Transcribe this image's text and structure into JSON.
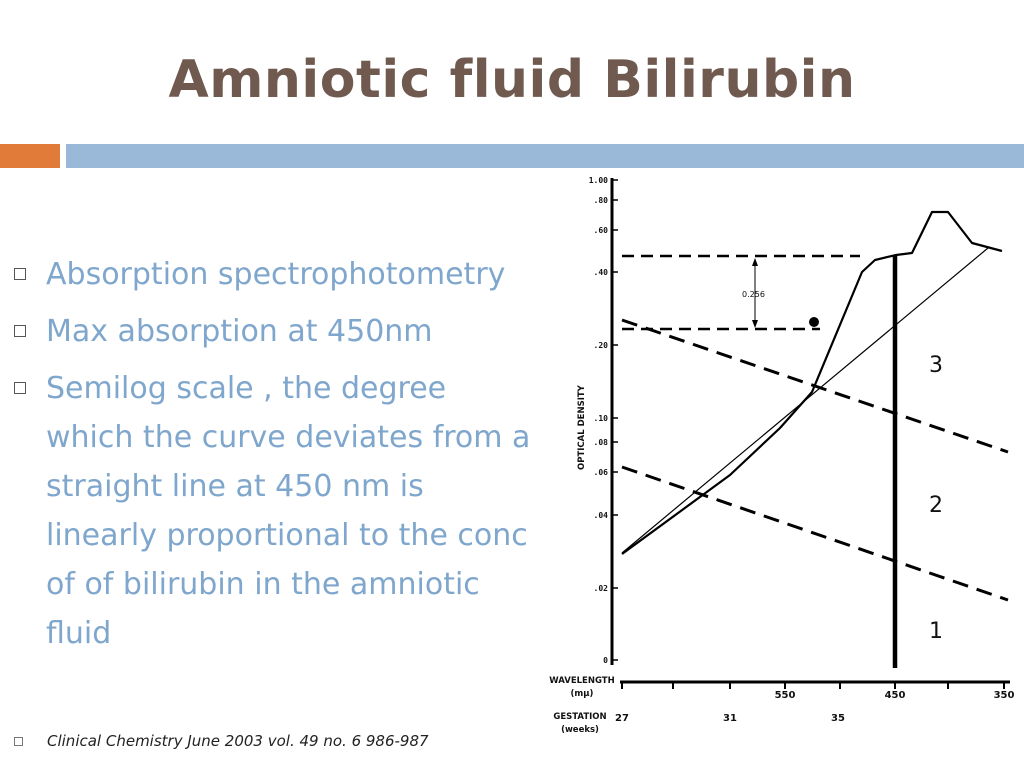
{
  "slide": {
    "title": "Amniotic fluid Bilirubin",
    "colors": {
      "title": "#705a50",
      "accent_orange": "#e07b39",
      "accent_blue": "#9ab8d8",
      "bullet_text": "#7fa6cc"
    },
    "bullets": [
      {
        "text": "Absorption spectrophotometry"
      },
      {
        "text": "Max absorption at 450nm"
      },
      {
        "text": "Semilog  scale , the degree which the curve deviates from a straight line  at 450 nm is linearly proportional to the conc of of bilirubin in the amniotic fluid"
      }
    ],
    "footer": "Clinical Chemistry June 2003 vol. 49 no. 6 986-987"
  },
  "diagram": {
    "y_axis_label": "OPTICAL DENSITY",
    "y_ticks": [
      "1.00",
      ".80",
      ".60",
      ".40",
      ".20",
      ".10",
      ".08",
      ".06",
      ".04",
      ".02",
      "0"
    ],
    "wavelength_label_1": "WAVELENGTH",
    "wavelength_label_2": "(mμ)",
    "wavelength_ticks": [
      "550",
      "450",
      "350"
    ],
    "gestation_label_1": "GESTATION",
    "gestation_label_2": "(weeks)",
    "gestation_ticks": [
      "27",
      "31",
      "35"
    ],
    "zones": [
      "1",
      "2",
      "3"
    ],
    "annotation": "0.256"
  }
}
